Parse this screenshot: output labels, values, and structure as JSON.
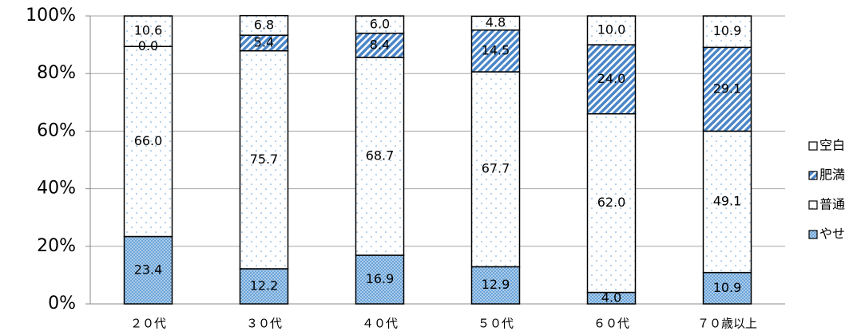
{
  "chart_data": {
    "type": "stacked_bar",
    "categories": [
      "２０代",
      "３０代",
      "４０代",
      "５０代",
      "６０代",
      "７０歳以上"
    ],
    "series": [
      {
        "name": "やせ",
        "color": "#5b9bd5",
        "pattern": "crosshatch",
        "values": [
          23.4,
          12.2,
          16.9,
          12.9,
          4.0,
          10.9
        ],
        "value_labels": [
          "23.4",
          "12.2",
          "16.9",
          "12.9",
          "4.0",
          "10.9"
        ]
      },
      {
        "name": "普通",
        "color": "#5b9bd5",
        "pattern": "dots",
        "values": [
          66.0,
          75.7,
          68.7,
          67.7,
          62.0,
          49.1
        ],
        "value_labels": [
          "66.0",
          "75.7",
          "68.7",
          "67.7",
          "62.0",
          "49.1"
        ]
      },
      {
        "name": "肥満",
        "color": "#4a86c8",
        "pattern": "stripes",
        "values": [
          0.0,
          5.4,
          8.4,
          14.5,
          24.0,
          29.1
        ],
        "value_labels": [
          "0.0",
          "5.4",
          "8.4",
          "14.5",
          "24.0",
          "29.1"
        ]
      },
      {
        "name": "空白",
        "color": "#5b9bd5",
        "pattern": "dots",
        "values": [
          10.6,
          6.8,
          6.0,
          4.8,
          10.0,
          10.9
        ],
        "value_labels": [
          "10.6",
          "6.8",
          "6.0",
          "4.8",
          "10.0",
          "10.9"
        ]
      }
    ],
    "ylim": [
      0,
      100
    ],
    "yticks": [
      {
        "value": 0,
        "label": "0%"
      },
      {
        "value": 20,
        "label": "20%"
      },
      {
        "value": 40,
        "label": "40%"
      },
      {
        "value": 60,
        "label": "60%"
      },
      {
        "value": 80,
        "label": "80%"
      },
      {
        "value": 100,
        "label": "100%"
      }
    ],
    "grid": true,
    "legend": "right"
  }
}
